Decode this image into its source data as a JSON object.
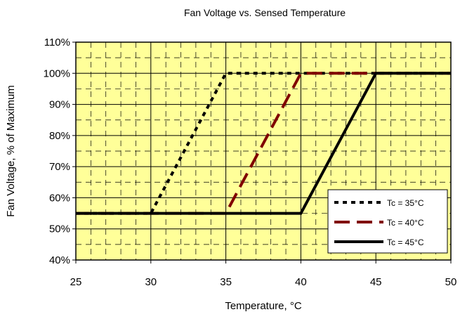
{
  "chart_data": {
    "type": "line",
    "title": "Fan Voltage vs. Sensed Temperature",
    "xlabel": "Temperature, °C",
    "ylabel": "Fan Voltage, % of Maximum",
    "xlim": [
      25,
      50
    ],
    "ylim": [
      40,
      110
    ],
    "x_ticks": [
      25,
      30,
      35,
      40,
      45,
      50
    ],
    "y_ticks": [
      40,
      50,
      60,
      70,
      80,
      90,
      100,
      110
    ],
    "y_tick_labels": [
      "40%",
      "50%",
      "60%",
      "70%",
      "80%",
      "90%",
      "100%",
      "110%"
    ],
    "grid": true,
    "plot_background": "#ffff99",
    "legend_position": "bottom-right",
    "series": [
      {
        "name": "Tc = 35°C",
        "color": "#000000",
        "style": "dotted",
        "x": [
          25,
          30,
          35,
          50
        ],
        "y": [
          55,
          55,
          100,
          100
        ]
      },
      {
        "name": "Tc = 40°C",
        "color": "#800000",
        "style": "dashed",
        "x": [
          25,
          35,
          40,
          50
        ],
        "y": [
          55,
          55,
          100,
          100
        ]
      },
      {
        "name": "Tc = 45°C",
        "color": "#000000",
        "style": "solid",
        "x": [
          25,
          40,
          45,
          50
        ],
        "y": [
          55,
          55,
          100,
          100
        ]
      }
    ]
  }
}
